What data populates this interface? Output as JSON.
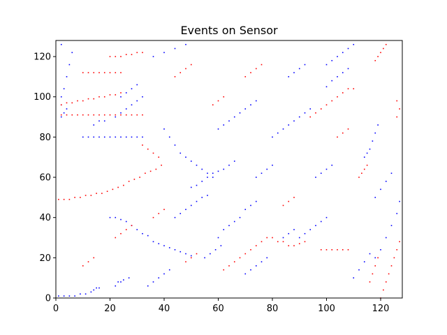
{
  "chart_data": {
    "type": "scatter",
    "title": "Events on Sensor",
    "xlabel": "",
    "ylabel": "",
    "xlim": [
      0,
      128
    ],
    "ylim": [
      0,
      128
    ],
    "x_ticks": [
      "0",
      "20",
      "40",
      "60",
      "80",
      "100",
      "120"
    ],
    "y_ticks": [
      "0",
      "20",
      "40",
      "60",
      "80",
      "100",
      "120"
    ],
    "grid": false,
    "series": [
      {
        "color": "#0000ff",
        "points": [
          [
            1,
            1
          ],
          [
            3,
            1
          ],
          [
            5,
            1
          ],
          [
            7,
            1
          ],
          [
            9,
            2
          ],
          [
            11,
            2
          ],
          [
            13,
            3
          ],
          [
            14,
            4
          ],
          [
            15,
            5
          ],
          [
            16,
            5
          ],
          [
            22,
            6
          ],
          [
            23,
            8
          ],
          [
            24,
            8
          ],
          [
            25,
            9
          ],
          [
            27,
            10
          ],
          [
            2,
            90
          ],
          [
            3,
            92
          ],
          [
            4,
            94
          ],
          [
            2,
            96
          ],
          [
            2,
            100
          ],
          [
            3,
            104
          ],
          [
            4,
            110
          ],
          [
            5,
            116
          ],
          [
            6,
            122
          ],
          [
            2,
            126
          ],
          [
            10,
            80
          ],
          [
            12,
            80
          ],
          [
            14,
            80
          ],
          [
            16,
            80
          ],
          [
            18,
            80
          ],
          [
            20,
            80
          ],
          [
            22,
            80
          ],
          [
            24,
            80
          ],
          [
            26,
            80
          ],
          [
            28,
            80
          ],
          [
            30,
            80
          ],
          [
            32,
            80
          ],
          [
            14,
            86
          ],
          [
            16,
            88
          ],
          [
            18,
            88
          ],
          [
            22,
            90
          ],
          [
            24,
            92
          ],
          [
            26,
            94
          ],
          [
            28,
            96
          ],
          [
            30,
            98
          ],
          [
            32,
            100
          ],
          [
            20,
            40
          ],
          [
            22,
            40
          ],
          [
            24,
            39
          ],
          [
            26,
            38
          ],
          [
            28,
            36
          ],
          [
            30,
            34
          ],
          [
            32,
            32
          ],
          [
            34,
            31
          ],
          [
            36,
            28
          ],
          [
            38,
            27
          ],
          [
            40,
            26
          ],
          [
            42,
            25
          ],
          [
            44,
            24
          ],
          [
            46,
            23
          ],
          [
            48,
            22
          ],
          [
            50,
            21
          ],
          [
            40,
            84
          ],
          [
            42,
            80
          ],
          [
            44,
            76
          ],
          [
            46,
            72
          ],
          [
            48,
            70
          ],
          [
            50,
            68
          ],
          [
            52,
            66
          ],
          [
            54,
            64
          ],
          [
            56,
            62
          ],
          [
            58,
            60
          ],
          [
            50,
            55
          ],
          [
            52,
            56
          ],
          [
            54,
            58
          ],
          [
            56,
            60
          ],
          [
            58,
            62
          ],
          [
            60,
            63
          ],
          [
            62,
            64
          ],
          [
            64,
            66
          ],
          [
            66,
            68
          ],
          [
            44,
            40
          ],
          [
            46,
            42
          ],
          [
            48,
            44
          ],
          [
            50,
            46
          ],
          [
            52,
            48
          ],
          [
            54,
            50
          ],
          [
            56,
            51
          ],
          [
            60,
            30
          ],
          [
            62,
            34
          ],
          [
            64,
            36
          ],
          [
            66,
            38
          ],
          [
            68,
            40
          ],
          [
            70,
            44
          ],
          [
            72,
            46
          ],
          [
            74,
            48
          ],
          [
            60,
            84
          ],
          [
            62,
            86
          ],
          [
            64,
            88
          ],
          [
            66,
            90
          ],
          [
            68,
            92
          ],
          [
            70,
            94
          ],
          [
            72,
            96
          ],
          [
            74,
            98
          ],
          [
            80,
            80
          ],
          [
            82,
            82
          ],
          [
            84,
            84
          ],
          [
            86,
            86
          ],
          [
            88,
            88
          ],
          [
            90,
            90
          ],
          [
            92,
            92
          ],
          [
            94,
            94
          ],
          [
            90,
            30
          ],
          [
            92,
            32
          ],
          [
            94,
            34
          ],
          [
            96,
            36
          ],
          [
            98,
            38
          ],
          [
            100,
            40
          ],
          [
            100,
            116
          ],
          [
            102,
            118
          ],
          [
            104,
            120
          ],
          [
            106,
            122
          ],
          [
            108,
            124
          ],
          [
            110,
            126
          ],
          [
            100,
            105
          ],
          [
            102,
            108
          ],
          [
            104,
            110
          ],
          [
            106,
            112
          ],
          [
            108,
            114
          ],
          [
            114,
            70
          ],
          [
            115,
            72
          ],
          [
            116,
            74
          ],
          [
            117,
            78
          ],
          [
            118,
            82
          ],
          [
            119,
            86
          ],
          [
            118,
            20
          ],
          [
            120,
            24
          ],
          [
            122,
            30
          ],
          [
            124,
            36
          ],
          [
            126,
            42
          ],
          [
            127,
            48
          ],
          [
            118,
            50
          ],
          [
            120,
            54
          ],
          [
            122,
            58
          ],
          [
            124,
            62
          ],
          [
            110,
            10
          ],
          [
            112,
            14
          ],
          [
            114,
            18
          ],
          [
            116,
            22
          ],
          [
            70,
            12
          ],
          [
            72,
            14
          ],
          [
            74,
            16
          ],
          [
            76,
            18
          ],
          [
            78,
            20
          ],
          [
            84,
            30
          ],
          [
            86,
            32
          ],
          [
            88,
            34
          ],
          [
            34,
            6
          ],
          [
            36,
            8
          ],
          [
            38,
            10
          ],
          [
            40,
            12
          ],
          [
            42,
            14
          ],
          [
            24,
            100
          ],
          [
            26,
            102
          ],
          [
            28,
            104
          ],
          [
            30,
            106
          ],
          [
            55,
            20
          ],
          [
            57,
            22
          ],
          [
            59,
            24
          ],
          [
            61,
            26
          ],
          [
            96,
            60
          ],
          [
            98,
            62
          ],
          [
            100,
            64
          ],
          [
            102,
            66
          ],
          [
            74,
            60
          ],
          [
            76,
            62
          ],
          [
            78,
            64
          ],
          [
            80,
            66
          ],
          [
            86,
            110
          ],
          [
            88,
            112
          ],
          [
            90,
            114
          ],
          [
            92,
            116
          ],
          [
            36,
            120
          ],
          [
            40,
            122
          ],
          [
            44,
            124
          ],
          [
            48,
            126
          ]
        ]
      },
      {
        "color": "#ff0000",
        "points": [
          [
            1,
            49
          ],
          [
            3,
            49
          ],
          [
            5,
            49
          ],
          [
            7,
            50
          ],
          [
            9,
            50
          ],
          [
            11,
            51
          ],
          [
            13,
            51
          ],
          [
            15,
            52
          ],
          [
            17,
            52
          ],
          [
            19,
            53
          ],
          [
            21,
            54
          ],
          [
            23,
            55
          ],
          [
            25,
            56
          ],
          [
            27,
            58
          ],
          [
            29,
            59
          ],
          [
            31,
            60
          ],
          [
            33,
            62
          ],
          [
            35,
            63
          ],
          [
            37,
            64
          ],
          [
            39,
            66
          ],
          [
            2,
            91
          ],
          [
            4,
            91
          ],
          [
            6,
            91
          ],
          [
            8,
            91
          ],
          [
            10,
            91
          ],
          [
            12,
            91
          ],
          [
            14,
            91
          ],
          [
            16,
            91
          ],
          [
            18,
            91
          ],
          [
            20,
            91
          ],
          [
            22,
            91
          ],
          [
            24,
            91
          ],
          [
            26,
            91
          ],
          [
            28,
            91
          ],
          [
            30,
            91
          ],
          [
            32,
            91
          ],
          [
            2,
            96
          ],
          [
            4,
            97
          ],
          [
            6,
            97
          ],
          [
            8,
            98
          ],
          [
            10,
            98
          ],
          [
            12,
            99
          ],
          [
            14,
            99
          ],
          [
            16,
            100
          ],
          [
            18,
            100
          ],
          [
            20,
            101
          ],
          [
            22,
            101
          ],
          [
            24,
            102
          ],
          [
            10,
            112
          ],
          [
            12,
            112
          ],
          [
            14,
            112
          ],
          [
            16,
            112
          ],
          [
            18,
            112
          ],
          [
            20,
            112
          ],
          [
            22,
            112
          ],
          [
            24,
            112
          ],
          [
            20,
            120
          ],
          [
            22,
            120
          ],
          [
            24,
            120
          ],
          [
            26,
            121
          ],
          [
            28,
            121
          ],
          [
            30,
            122
          ],
          [
            32,
            122
          ],
          [
            32,
            76
          ],
          [
            34,
            74
          ],
          [
            36,
            72
          ],
          [
            38,
            70
          ],
          [
            62,
            14
          ],
          [
            64,
            16
          ],
          [
            66,
            18
          ],
          [
            68,
            20
          ],
          [
            70,
            22
          ],
          [
            72,
            24
          ],
          [
            74,
            26
          ],
          [
            76,
            28
          ],
          [
            78,
            30
          ],
          [
            80,
            30
          ],
          [
            82,
            28
          ],
          [
            84,
            28
          ],
          [
            86,
            26
          ],
          [
            88,
            26
          ],
          [
            90,
            27
          ],
          [
            92,
            28
          ],
          [
            94,
            90
          ],
          [
            96,
            92
          ],
          [
            98,
            94
          ],
          [
            100,
            96
          ],
          [
            102,
            98
          ],
          [
            104,
            100
          ],
          [
            106,
            102
          ],
          [
            108,
            104
          ],
          [
            110,
            104
          ],
          [
            112,
            60
          ],
          [
            113,
            62
          ],
          [
            114,
            64
          ],
          [
            115,
            66
          ],
          [
            120,
            0
          ],
          [
            121,
            4
          ],
          [
            122,
            8
          ],
          [
            123,
            12
          ],
          [
            124,
            16
          ],
          [
            125,
            20
          ],
          [
            126,
            24
          ],
          [
            127,
            28
          ],
          [
            116,
            8
          ],
          [
            117,
            12
          ],
          [
            118,
            16
          ],
          [
            119,
            20
          ],
          [
            98,
            24
          ],
          [
            100,
            24
          ],
          [
            102,
            24
          ],
          [
            104,
            24
          ],
          [
            106,
            24
          ],
          [
            108,
            24
          ],
          [
            118,
            118
          ],
          [
            119,
            120
          ],
          [
            120,
            122
          ],
          [
            121,
            124
          ],
          [
            122,
            126
          ],
          [
            48,
            18
          ],
          [
            50,
            20
          ],
          [
            52,
            22
          ],
          [
            22,
            30
          ],
          [
            24,
            32
          ],
          [
            26,
            34
          ],
          [
            28,
            36
          ],
          [
            44,
            110
          ],
          [
            46,
            112
          ],
          [
            48,
            114
          ],
          [
            50,
            116
          ],
          [
            70,
            110
          ],
          [
            72,
            112
          ],
          [
            74,
            114
          ],
          [
            76,
            116
          ],
          [
            58,
            96
          ],
          [
            60,
            98
          ],
          [
            62,
            100
          ],
          [
            84,
            46
          ],
          [
            86,
            48
          ],
          [
            88,
            50
          ],
          [
            104,
            80
          ],
          [
            106,
            82
          ],
          [
            108,
            84
          ],
          [
            10,
            16
          ],
          [
            12,
            18
          ],
          [
            14,
            20
          ],
          [
            126,
            90
          ],
          [
            127,
            94
          ],
          [
            126,
            98
          ],
          [
            36,
            40
          ],
          [
            38,
            42
          ],
          [
            40,
            44
          ]
        ]
      }
    ]
  }
}
